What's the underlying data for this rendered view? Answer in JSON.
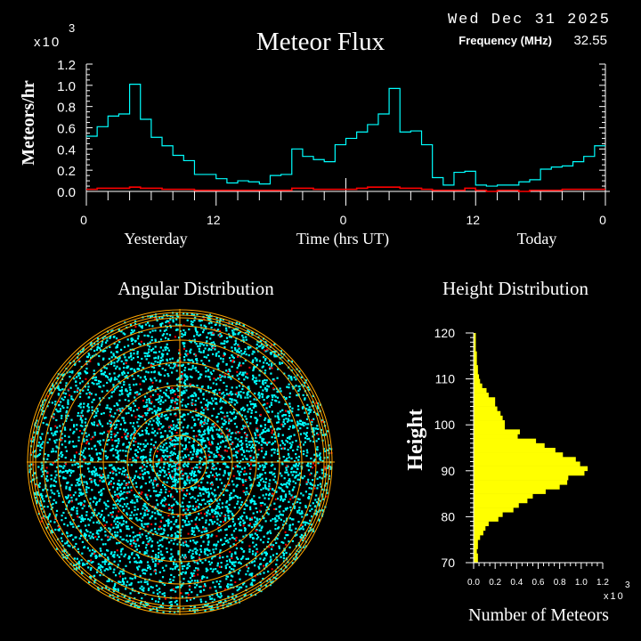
{
  "header": {
    "date": "Wed Dec 31 2025",
    "frequency_label": "Frequency (MHz)",
    "frequency_value": "32.55"
  },
  "chart_data": [
    {
      "type": "line",
      "title": "Meteor Flux",
      "ylabel": "Meteors/hr",
      "yscale_label": "x10",
      "yscale_exponent": "3",
      "xlabel": "Time (hrs UT)",
      "x_day_labels": [
        "Yesterday",
        "Today"
      ],
      "xtick_labels": [
        "0",
        "12",
        "0",
        "12",
        "0"
      ],
      "ytick_labels": [
        "0.0",
        "0.2",
        "0.4",
        "0.6",
        "0.8",
        "1.0",
        "1.2"
      ],
      "ylim": [
        0,
        1.2
      ],
      "xlim_hours": [
        0,
        48
      ],
      "step": true,
      "colors": {
        "series1": "#00ffff",
        "series2": "#ff0000"
      },
      "series": [
        {
          "values": [
            0.52,
            0.61,
            0.71,
            0.73,
            1.01,
            0.68,
            0.51,
            0.43,
            0.34,
            0.29,
            0.16,
            0.16,
            0.12,
            0.08,
            0.1,
            0.09,
            0.07,
            0.15,
            0.16,
            0.4,
            0.33,
            0.3,
            0.28,
            0.44,
            0.5,
            0.56,
            0.63,
            0.73,
            0.97,
            0.56,
            0.57,
            0.44,
            0.13,
            0.06,
            0.18,
            0.19,
            0.06,
            0.05,
            0.06,
            0.06,
            0.09,
            0.11,
            0.21,
            0.23,
            0.24,
            0.28,
            0.33,
            0.43
          ]
        },
        {
          "values": [
            0.02,
            0.03,
            0.03,
            0.03,
            0.04,
            0.03,
            0.03,
            0.02,
            0.02,
            0.02,
            0.01,
            0.01,
            0.01,
            0.01,
            0.01,
            0.01,
            0.01,
            0.01,
            0.01,
            0.03,
            0.03,
            0.02,
            0.02,
            0.02,
            0.02,
            0.03,
            0.04,
            0.04,
            0.04,
            0.03,
            0.03,
            0.02,
            0.01,
            0.01,
            0.01,
            0.03,
            0.01,
            0.0,
            0.01,
            0.01,
            0.0,
            0.01,
            0.01,
            0.01,
            0.02,
            0.02,
            0.02,
            0.02
          ]
        }
      ]
    },
    {
      "type": "scatter",
      "title": "Angular Distribution",
      "projection": "polar",
      "colors": {
        "points": "#00ffff",
        "points_secondary": "#ff0000",
        "grid": "#ffa500"
      }
    },
    {
      "type": "bar",
      "orientation": "horizontal",
      "title": "Height Distribution",
      "ylabel": "Height",
      "xlabel": "Number of Meteors",
      "xscale_label": "x10",
      "xscale_exponent": "3",
      "ylim": [
        70,
        120
      ],
      "xlim": [
        0,
        1.2
      ],
      "ytick_labels": [
        "70",
        "80",
        "90",
        "100",
        "110",
        "120"
      ],
      "xtick_labels": [
        "0.0",
        "0.2",
        "0.4",
        "0.6",
        "0.8",
        "1.0",
        "1.2"
      ],
      "color": "#ffff00",
      "bin_start_heights": [
        70,
        71,
        72,
        73,
        74,
        75,
        76,
        77,
        78,
        79,
        80,
        81,
        82,
        83,
        84,
        85,
        86,
        87,
        88,
        89,
        90,
        91,
        92,
        93,
        94,
        95,
        96,
        97,
        98,
        99,
        100,
        101,
        102,
        103,
        104,
        105,
        106,
        107,
        108,
        109,
        110,
        111,
        112,
        113,
        114,
        115,
        116,
        117,
        118,
        119
      ],
      "values": [
        0.04,
        0.04,
        0.03,
        0.04,
        0.04,
        0.06,
        0.09,
        0.11,
        0.14,
        0.23,
        0.27,
        0.37,
        0.42,
        0.5,
        0.55,
        0.67,
        0.8,
        0.87,
        0.88,
        1.03,
        1.06,
        0.99,
        0.95,
        0.83,
        0.76,
        0.66,
        0.58,
        0.41,
        0.43,
        0.29,
        0.29,
        0.27,
        0.25,
        0.22,
        0.2,
        0.2,
        0.14,
        0.12,
        0.08,
        0.06,
        0.05,
        0.04,
        0.04,
        0.03,
        0.03,
        0.03,
        0.02,
        0.02,
        0.02,
        0.02
      ]
    }
  ]
}
